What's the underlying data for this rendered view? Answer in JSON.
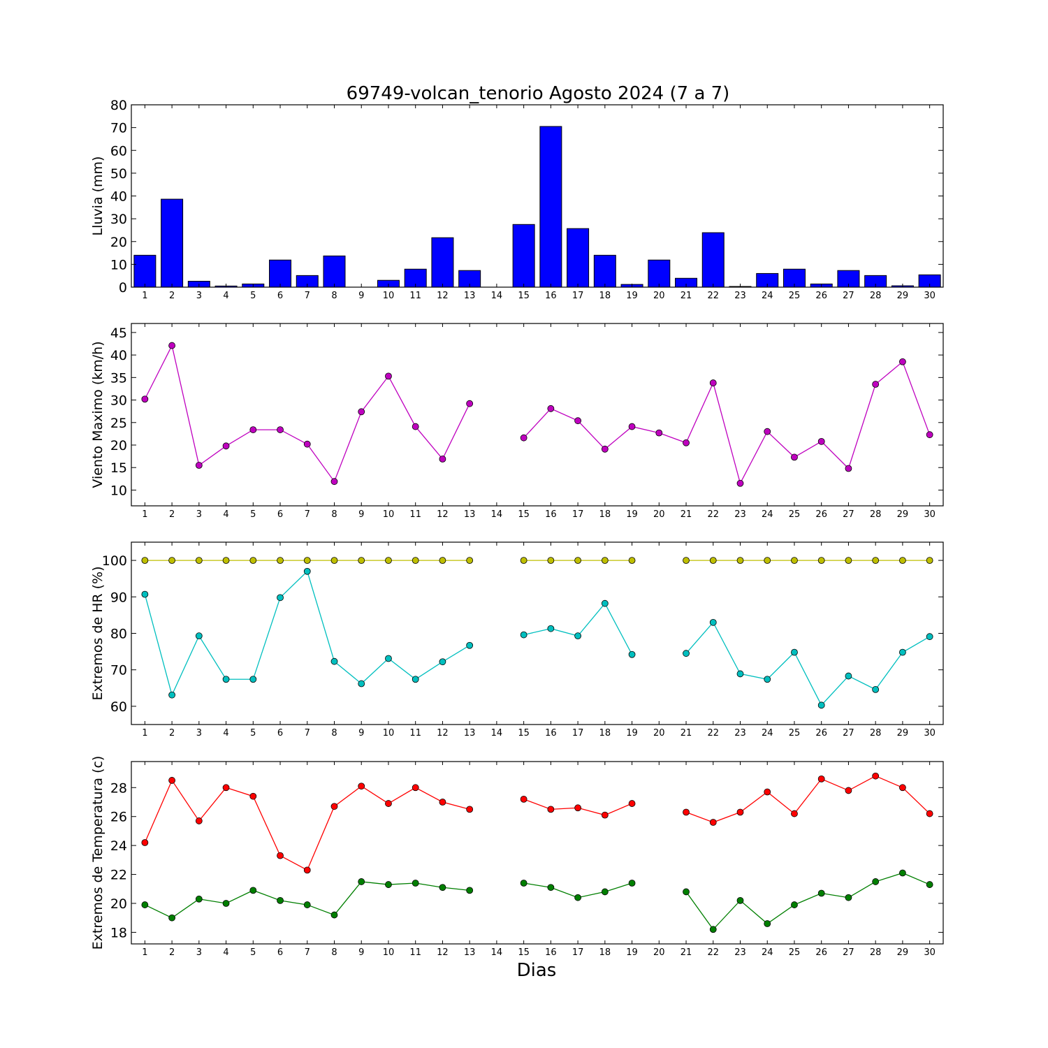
{
  "title": "69749-volcan_tenorio Agosto 2024  (7 a 7)",
  "xlabel": "Dias",
  "chart_data": [
    {
      "type": "bar",
      "name": "lluvia",
      "ylabel": "Lluvia (mm)",
      "ylim": [
        0,
        80
      ],
      "yticks": [
        0,
        10,
        20,
        30,
        40,
        50,
        60,
        70,
        80
      ],
      "x": [
        1,
        2,
        3,
        4,
        5,
        6,
        7,
        8,
        9,
        10,
        11,
        12,
        13,
        14,
        15,
        16,
        17,
        18,
        19,
        20,
        21,
        22,
        23,
        24,
        25,
        26,
        27,
        28,
        29,
        30
      ],
      "xticks": [
        1,
        2,
        3,
        4,
        5,
        6,
        7,
        8,
        9,
        10,
        11,
        12,
        13,
        14,
        15,
        16,
        17,
        18,
        19,
        20,
        21,
        22,
        23,
        24,
        25,
        26,
        27,
        28,
        29,
        30
      ],
      "color": "#0000ff",
      "values": [
        14.0,
        38.6,
        2.6,
        0.5,
        1.4,
        11.9,
        5.1,
        13.7,
        0.0,
        3.0,
        7.9,
        21.7,
        7.3,
        0.0,
        27.5,
        70.5,
        25.7,
        14.0,
        1.2,
        11.9,
        3.9,
        23.9,
        0.3,
        6.0,
        7.9,
        1.4,
        7.3,
        5.1,
        0.6,
        5.4
      ]
    },
    {
      "type": "line",
      "name": "viento",
      "ylabel": "Viento Maximo (km/h)",
      "ylim": [
        6.5,
        47
      ],
      "yticks": [
        10,
        15,
        20,
        25,
        30,
        35,
        40,
        45
      ],
      "x": [
        1,
        2,
        3,
        4,
        5,
        6,
        7,
        8,
        9,
        10,
        11,
        12,
        13,
        14,
        15,
        16,
        17,
        18,
        19,
        20,
        21,
        22,
        23,
        24,
        25,
        26,
        27,
        28,
        29,
        30
      ],
      "xticks": [
        1,
        2,
        3,
        4,
        5,
        6,
        7,
        8,
        9,
        10,
        11,
        12,
        13,
        14,
        15,
        16,
        17,
        18,
        19,
        20,
        21,
        22,
        23,
        24,
        25,
        26,
        27,
        28,
        29,
        30
      ],
      "series": [
        {
          "color": "#bf00bf",
          "values": [
            30.2,
            42.1,
            15.5,
            19.8,
            23.4,
            23.4,
            20.2,
            11.9,
            27.4,
            35.3,
            24.1,
            16.9,
            29.2,
            null,
            21.6,
            28.1,
            25.4,
            19.1,
            24.1,
            22.7,
            20.5,
            33.8,
            11.5,
            23.0,
            17.3,
            20.8,
            14.8,
            33.5,
            38.5,
            22.3
          ]
        }
      ]
    },
    {
      "type": "line",
      "name": "humedad",
      "ylabel": "Extremos de HR (%)",
      "ylim": [
        55,
        105
      ],
      "yticks": [
        60,
        70,
        80,
        90,
        100
      ],
      "x": [
        1,
        2,
        3,
        4,
        5,
        6,
        7,
        8,
        9,
        10,
        11,
        12,
        13,
        14,
        15,
        16,
        17,
        18,
        19,
        20,
        21,
        22,
        23,
        24,
        25,
        26,
        27,
        28,
        29,
        30
      ],
      "xticks": [
        1,
        2,
        3,
        4,
        5,
        6,
        7,
        8,
        9,
        10,
        11,
        12,
        13,
        14,
        15,
        16,
        17,
        18,
        19,
        20,
        21,
        22,
        23,
        24,
        25,
        26,
        27,
        28,
        29,
        30
      ],
      "series": [
        {
          "color": "#bfbf00",
          "values": [
            100,
            100,
            100,
            100,
            100,
            100,
            100,
            100,
            100,
            100,
            100,
            100,
            100,
            null,
            100,
            100,
            100,
            100,
            100,
            null,
            100,
            100,
            100,
            100,
            100,
            100,
            100,
            100,
            100,
            100
          ]
        },
        {
          "color": "#00bfbf",
          "values": [
            90.7,
            63.1,
            79.3,
            67.4,
            67.4,
            89.8,
            97.0,
            72.3,
            66.2,
            73.1,
            67.4,
            72.2,
            76.7,
            null,
            79.6,
            81.3,
            79.3,
            88.2,
            74.2,
            null,
            74.5,
            83.0,
            68.9,
            67.4,
            74.8,
            60.3,
            68.3,
            64.6,
            74.8,
            79.1
          ]
        }
      ]
    },
    {
      "type": "line",
      "name": "temperatura",
      "ylabel": "Extremos de Temperatura (c)",
      "ylim": [
        17.2,
        29.8
      ],
      "yticks": [
        18,
        20,
        22,
        24,
        26,
        28
      ],
      "x": [
        1,
        2,
        3,
        4,
        5,
        6,
        7,
        8,
        9,
        10,
        11,
        12,
        13,
        14,
        15,
        16,
        17,
        18,
        19,
        20,
        21,
        22,
        23,
        24,
        25,
        26,
        27,
        28,
        29,
        30
      ],
      "xticks": [
        1,
        2,
        3,
        4,
        5,
        6,
        7,
        8,
        9,
        10,
        11,
        12,
        13,
        14,
        15,
        16,
        17,
        18,
        19,
        20,
        21,
        22,
        23,
        24,
        25,
        26,
        27,
        28,
        29,
        30
      ],
      "series": [
        {
          "color": "#ff0000",
          "values": [
            24.2,
            28.5,
            25.7,
            28.0,
            27.4,
            23.3,
            22.3,
            26.7,
            28.1,
            26.9,
            28.0,
            27.0,
            26.5,
            null,
            27.2,
            26.5,
            26.6,
            26.1,
            26.9,
            null,
            26.3,
            25.6,
            26.3,
            27.7,
            26.2,
            28.6,
            27.8,
            28.8,
            28.0,
            26.2
          ]
        },
        {
          "color": "#007f00",
          "values": [
            19.9,
            19.0,
            20.3,
            20.0,
            20.9,
            20.2,
            19.9,
            19.2,
            21.5,
            21.3,
            21.4,
            21.1,
            20.9,
            null,
            21.4,
            21.1,
            20.4,
            20.8,
            21.4,
            null,
            20.8,
            18.2,
            20.2,
            18.6,
            19.9,
            20.7,
            20.4,
            21.5,
            22.1,
            21.3
          ]
        }
      ]
    }
  ]
}
